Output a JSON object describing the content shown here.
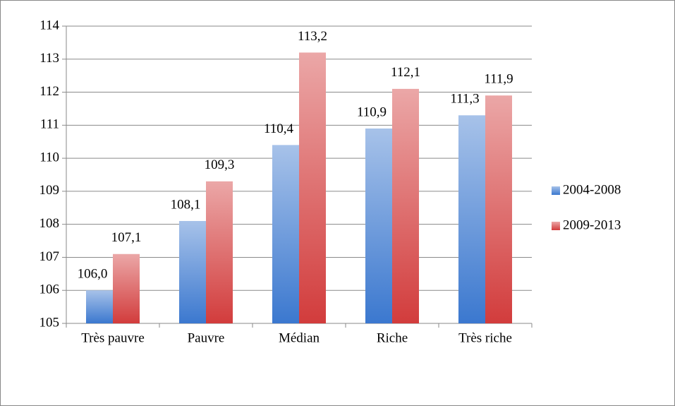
{
  "chart_data": {
    "type": "bar",
    "categories": [
      "Très pauvre",
      "Pauvre",
      "Médian",
      "Riche",
      "Très riche"
    ],
    "series": [
      {
        "name": "2004-2008",
        "color": "#3b78cf",
        "values": [
          106.0,
          108.1,
          110.4,
          110.9,
          111.3
        ],
        "value_labels": [
          "106,0",
          "108,1",
          "110,4",
          "110,9",
          "111,3"
        ]
      },
      {
        "name": "2009-2013",
        "color": "#d23c3c",
        "values": [
          107.1,
          109.3,
          113.2,
          112.1,
          111.9
        ],
        "value_labels": [
          "107,1",
          "109,3",
          "113,2",
          "112,1",
          "111,9"
        ]
      }
    ],
    "ylim": [
      105,
      114
    ],
    "yticks": [
      105,
      106,
      107,
      108,
      109,
      110,
      111,
      112,
      113,
      114
    ],
    "grid": true,
    "legend": "right"
  }
}
